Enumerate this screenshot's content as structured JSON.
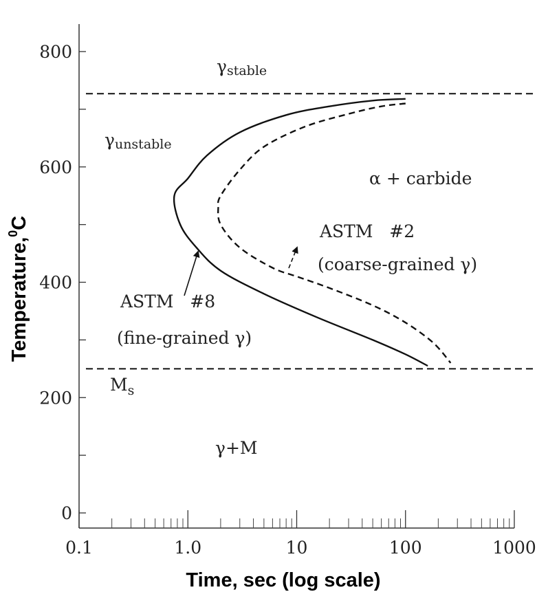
{
  "chart_data": {
    "type": "line",
    "title": "",
    "xlabel": "Time, sec (log scale)",
    "ylabel_main": "Temperature,",
    "ylabel_sup": "0",
    "ylabel_unit": "C",
    "x_scale": "log",
    "xlim": [
      0.1,
      1000
    ],
    "ylim": [
      -20,
      850
    ],
    "x_ticks": [
      {
        "value": 0.1,
        "label": "0.1"
      },
      {
        "value": 1,
        "label": "1.0"
      },
      {
        "value": 10,
        "label": "10"
      },
      {
        "value": 100,
        "label": "100"
      },
      {
        "value": 1000,
        "label": "1000"
      }
    ],
    "y_ticks": [
      {
        "value": 0,
        "label": "0"
      },
      {
        "value": 100,
        "label": ""
      },
      {
        "value": 200,
        "label": "200"
      },
      {
        "value": 300,
        "label": ""
      },
      {
        "value": 400,
        "label": "400"
      },
      {
        "value": 500,
        "label": ""
      },
      {
        "value": 600,
        "label": "600"
      },
      {
        "value": 700,
        "label": ""
      },
      {
        "value": 800,
        "label": "800"
      }
    ],
    "grid": false,
    "reference_lines": [
      {
        "name": "eutectoid",
        "y": 727,
        "style": "dashed"
      },
      {
        "name": "Ms",
        "y": 250,
        "style": "dashed"
      }
    ],
    "series": [
      {
        "style": "solid",
        "points": [
          [
            100,
            718
          ],
          [
            50,
            715
          ],
          [
            20,
            705
          ],
          [
            8,
            690
          ],
          [
            3,
            660
          ],
          [
            1.5,
            620
          ],
          [
            1.0,
            580
          ],
          [
            0.75,
            550
          ],
          [
            0.85,
            500
          ],
          [
            1.2,
            460
          ],
          [
            2,
            420
          ],
          [
            5,
            380
          ],
          [
            15,
            340
          ],
          [
            50,
            300
          ],
          [
            100,
            275
          ],
          [
            160,
            255
          ]
        ]
      },
      {
        "style": "dashed",
        "points": [
          [
            100,
            710
          ],
          [
            60,
            705
          ],
          [
            30,
            692
          ],
          [
            12,
            670
          ],
          [
            5,
            635
          ],
          [
            3,
            595
          ],
          [
            2,
            550
          ],
          [
            1.9,
            530
          ],
          [
            2,
            500
          ],
          [
            3,
            460
          ],
          [
            6,
            425
          ],
          [
            10,
            410
          ],
          [
            20,
            390
          ],
          [
            50,
            360
          ],
          [
            100,
            330
          ],
          [
            180,
            295
          ],
          [
            260,
            260
          ]
        ]
      }
    ],
    "annotations": [
      {
        "text": "γ",
        "sub": "stable"
      },
      {
        "text": "γ",
        "sub": "unstable"
      },
      {
        "text": "α + carbide"
      },
      {
        "text": "ASTM   #2"
      },
      {
        "text": "(coarse-grained γ)"
      },
      {
        "text": "ASTM   #8"
      },
      {
        "text": "(fine-grained γ)"
      },
      {
        "text": "M",
        "sub": "s"
      },
      {
        "text": "γ+M"
      }
    ]
  }
}
